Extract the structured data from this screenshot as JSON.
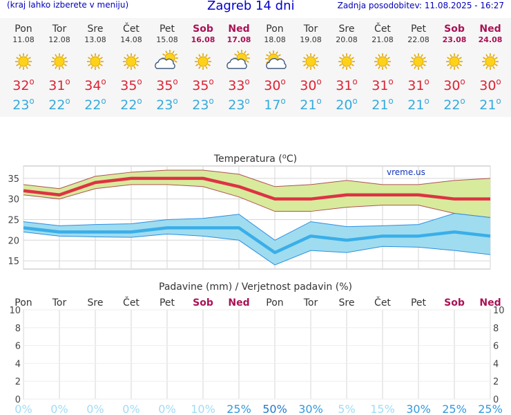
{
  "header": {
    "left_note": "(kraj lahko izberete v meniju)",
    "title": "Zagreb 14 dni",
    "updated": "Zadnja posodobitev: 11.08.2025 - 16:27"
  },
  "days": [
    {
      "name": "Pon",
      "date": "11.08",
      "weekend": false,
      "icon": "sun-icon",
      "tmax": "32",
      "tmin": "23"
    },
    {
      "name": "Tor",
      "date": "12.08",
      "weekend": false,
      "icon": "sun-icon",
      "tmax": "31",
      "tmin": "22"
    },
    {
      "name": "Sre",
      "date": "13.08",
      "weekend": false,
      "icon": "sun-icon",
      "tmax": "34",
      "tmin": "22"
    },
    {
      "name": "Čet",
      "date": "14.08",
      "weekend": false,
      "icon": "sun-icon",
      "tmax": "35",
      "tmin": "22"
    },
    {
      "name": "Pet",
      "date": "15.08",
      "weekend": false,
      "icon": "cloudy-icon",
      "tmax": "35",
      "tmin": "23"
    },
    {
      "name": "Sob",
      "date": "16.08",
      "weekend": true,
      "icon": "sun-icon",
      "tmax": "35",
      "tmin": "23"
    },
    {
      "name": "Ned",
      "date": "17.08",
      "weekend": true,
      "icon": "cloudy-icon",
      "tmax": "33",
      "tmin": "23"
    },
    {
      "name": "Pon",
      "date": "18.08",
      "weekend": false,
      "icon": "partly-cloudy-icon",
      "tmax": "30",
      "tmin": "17"
    },
    {
      "name": "Tor",
      "date": "19.08",
      "weekend": false,
      "icon": "sun-icon",
      "tmax": "30",
      "tmin": "21"
    },
    {
      "name": "Sre",
      "date": "20.08",
      "weekend": false,
      "icon": "sun-icon",
      "tmax": "31",
      "tmin": "20"
    },
    {
      "name": "Čet",
      "date": "21.08",
      "weekend": false,
      "icon": "sun-icon",
      "tmax": "31",
      "tmin": "21"
    },
    {
      "name": "Pet",
      "date": "22.08",
      "weekend": false,
      "icon": "sun-icon",
      "tmax": "31",
      "tmin": "21"
    },
    {
      "name": "Sob",
      "date": "23.08",
      "weekend": true,
      "icon": "sun-icon",
      "tmax": "30",
      "tmin": "22"
    },
    {
      "name": "Ned",
      "date": "24.08",
      "weekend": true,
      "icon": "sun-icon",
      "tmax": "30",
      "tmin": "21"
    }
  ],
  "degree_symbol": "o",
  "colors": {
    "max": "#dd3344",
    "min": "#3aaee8",
    "max_band": "#d8ea9c",
    "min_band": "#9fdcf0",
    "weekend": "#aa1155",
    "precip_low": "#9fdcf5",
    "precip_high": "#2277cc"
  },
  "chart_data": [
    {
      "type": "line",
      "title": "Temperatura (oC)",
      "watermark": "vreme.us",
      "x": [
        "Pon",
        "Tor",
        "Sre",
        "Čet",
        "Pet",
        "Sob",
        "Ned",
        "Pon",
        "Tor",
        "Sre",
        "Čet",
        "Pet",
        "Sob",
        "Ned"
      ],
      "ylim": [
        13,
        38
      ],
      "yticks": [
        "15",
        "20",
        "25",
        "30",
        "35"
      ],
      "grid": true,
      "series": [
        {
          "values": [
            32,
            31,
            34,
            35,
            35,
            35,
            33,
            30,
            30,
            31,
            31,
            31,
            30,
            30
          ]
        },
        {
          "values": [
            33.5,
            32.5,
            35.5,
            36.5,
            37,
            37,
            36,
            33,
            33.5,
            34.5,
            33.5,
            33.5,
            34.5,
            35
          ]
        },
        {
          "values": [
            31,
            30,
            32.5,
            33.5,
            33.5,
            33,
            30.5,
            27,
            27,
            28,
            28.5,
            28.5,
            26.5,
            25.5
          ]
        },
        {
          "values": [
            23,
            22,
            22,
            22,
            23,
            23,
            23,
            17,
            21,
            20,
            21,
            21,
            22,
            21
          ]
        },
        {
          "values": [
            24.5,
            23.5,
            23.8,
            24,
            25,
            25.3,
            26.3,
            20,
            24.5,
            23.3,
            23.5,
            23.8,
            26.5,
            25.5
          ]
        },
        {
          "values": [
            22,
            21,
            20.8,
            20.7,
            21.5,
            21,
            20,
            14,
            17.5,
            17,
            18.5,
            18.3,
            17.5,
            16.5
          ]
        }
      ]
    },
    {
      "type": "bar",
      "title": "Padavine (mm) / Verjetnost padavin (%)",
      "x": [
        "Pon",
        "Tor",
        "Sre",
        "Čet",
        "Pet",
        "Sob",
        "Ned",
        "Pon",
        "Tor",
        "Sre",
        "Čet",
        "Pet",
        "Sob",
        "Ned"
      ],
      "values": [
        0,
        0,
        0,
        0,
        0,
        0,
        0,
        0,
        0,
        0,
        0,
        0,
        0,
        0
      ],
      "ylim": [
        0,
        10
      ],
      "yticks": [
        "0",
        "2",
        "4",
        "6",
        "8",
        "10"
      ],
      "probability": [
        "0%",
        "0%",
        "0%",
        "0%",
        "0%",
        "10%",
        "25%",
        "50%",
        "30%",
        "5%",
        "15%",
        "30%",
        "25%",
        "25%"
      ],
      "probability_values": [
        0,
        0,
        0,
        0,
        0,
        10,
        25,
        50,
        30,
        5,
        15,
        30,
        25,
        25
      ]
    }
  ]
}
